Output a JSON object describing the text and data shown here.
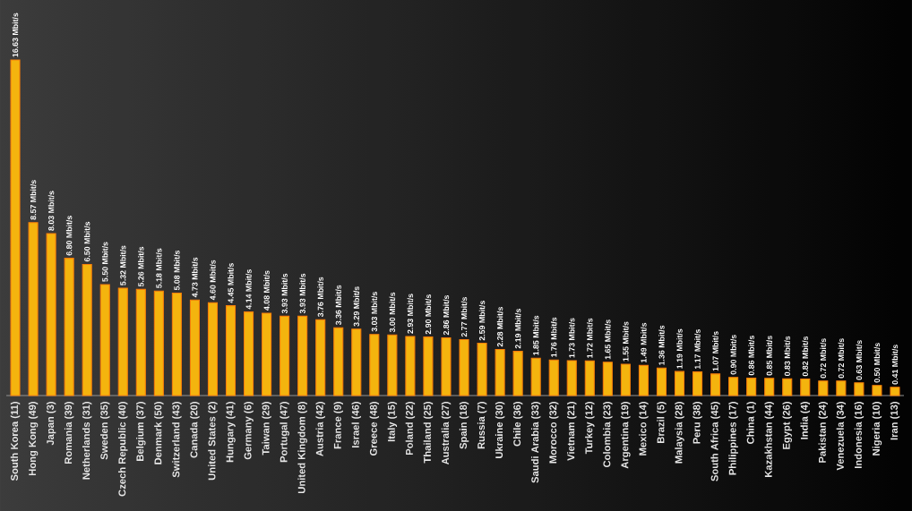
{
  "chart_data": {
    "type": "bar",
    "categories": [
      "South Korea (11)",
      "Hong Kong (49)",
      "Japan (3)",
      "Romania (39)",
      "Netherlands (31)",
      "Sweden (35)",
      "Czech Republic (40)",
      "Belgium (37)",
      "Denmark (50)",
      "Switzerland (43)",
      "Canada (20)",
      "United States (2)",
      "Hungary (41)",
      "Germany (6)",
      "Taiwan (29)",
      "Portugal (47)",
      "United Kingdom (8)",
      "Austria (42)",
      "France (9)",
      "Israel (46)",
      "Greece (48)",
      "Italy (15)",
      "Poland (22)",
      "Thailand (25)",
      "Australia (27)",
      "Spain (18)",
      "Russia (7)",
      "Ukraine (30)",
      "Chile (36)",
      "Saudi Arabia (33)",
      "Morocco (32)",
      "Vietnam (21)",
      "Turkey (12)",
      "Colombia (23)",
      "Argentina (19)",
      "Mexico (14)",
      "Brazil (5)",
      "Malaysia (28)",
      "Peru (38)",
      "South Africa (45)",
      "Philippines (17)",
      "China (1)",
      "Kazakhstan (44)",
      "Egypt (26)",
      "India (4)",
      "Pakistan (24)",
      "Venezuela (34)",
      "Indonesia (16)",
      "Nigeria (10)",
      "Iran (13)"
    ],
    "values": [
      16.63,
      8.57,
      8.03,
      6.8,
      6.5,
      5.5,
      5.32,
      5.26,
      5.18,
      5.08,
      4.73,
      4.6,
      4.45,
      4.14,
      4.08,
      3.93,
      3.93,
      3.76,
      3.36,
      3.29,
      3.03,
      3.0,
      2.93,
      2.9,
      2.86,
      2.77,
      2.59,
      2.28,
      2.19,
      1.85,
      1.76,
      1.73,
      1.72,
      1.65,
      1.55,
      1.49,
      1.36,
      1.19,
      1.17,
      1.07,
      0.9,
      0.86,
      0.85,
      0.83,
      0.82,
      0.72,
      0.72,
      0.63,
      0.5,
      0.41
    ],
    "value_labels": [
      "16.63 Mbit/s",
      "8.57 Mbit/s",
      "8.03 Mbit/s",
      "6.80 Mbit/s",
      "6.50 Mbit/s",
      "5.50 Mbit/s",
      "5.32 Mbit/s",
      "5.26 Mbit/s",
      "5.18 Mbit/s",
      "5.08 Mbit/s",
      "4.73 Mbit/s",
      "4.60 Mbit/s",
      "4.45 Mbit/s",
      "4.14 Mbit/s",
      "4.08 Mbit/s",
      "3.93 Mbit/s",
      "3.93 Mbit/s",
      "3.76 Mbit/s",
      "3.36 Mbit/s",
      "3.29 Mbit/s",
      "3.03 Mbit/s",
      "3.00 Mbit/s",
      "2.93 Mbit/s",
      "2.90 Mbit/s",
      "2.86 Mbit/s",
      "2.77 Mbit/s",
      "2.59 Mbit/s",
      "2.28 Mbit/s",
      "2.19 Mbit/s",
      "1.85 Mbit/s",
      "1.76 Mbit/s",
      "1.73 Mbit/s",
      "1.72 Mbit/s",
      "1.65 Mbit/s",
      "1.55 Mbit/s",
      "1.49 Mbit/s",
      "1.36 Mbit/s",
      "1.19 Mbit/s",
      "1.17 Mbit/s",
      "1.07 Mbit/s",
      "0.90 Mbit/s",
      "0.86 Mbit/s",
      "0.85 Mbit/s",
      "0.83 Mbit/s",
      "0.82 Mbit/s",
      "0.72 Mbit/s",
      "0.72 Mbit/s",
      "0.63 Mbit/s",
      "0.50 Mbit/s",
      "0.41 Mbit/s"
    ],
    "color": "#f4b40e"
  }
}
